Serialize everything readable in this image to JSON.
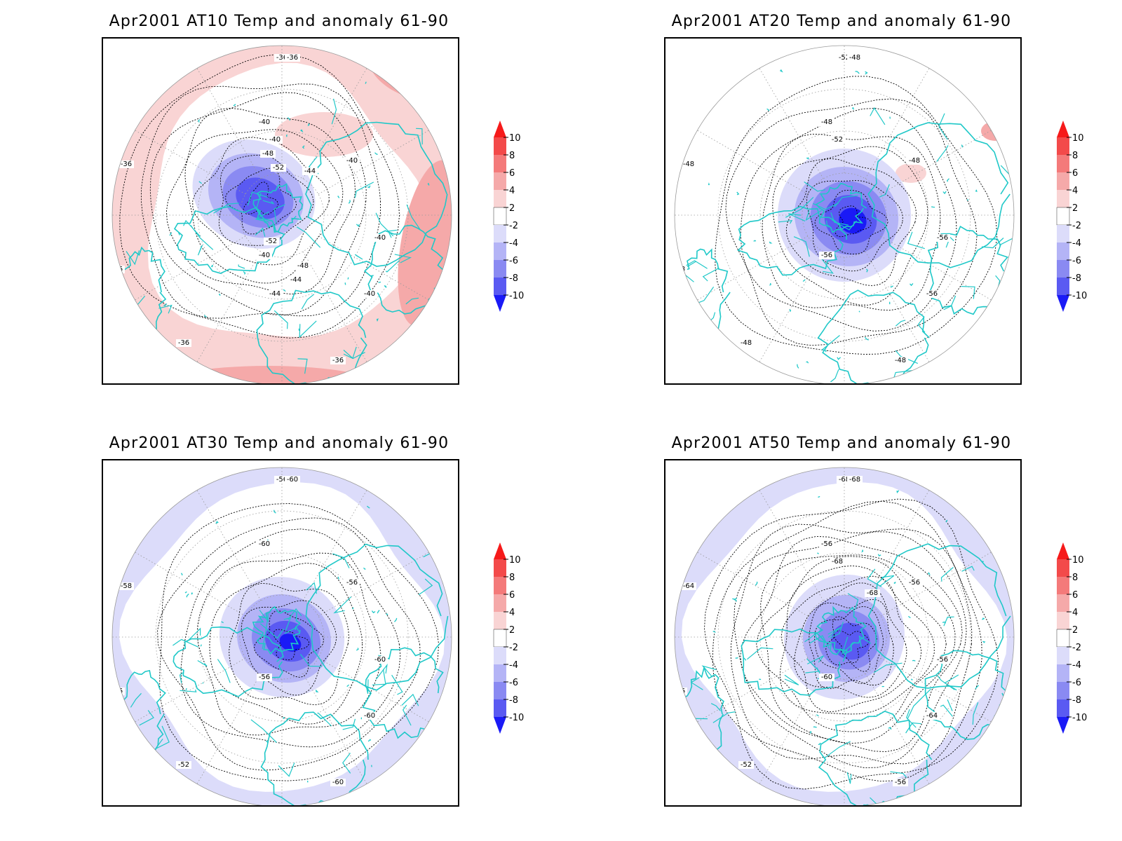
{
  "colorbar": {
    "levels": [
      "10",
      "8",
      "6",
      "4",
      "2",
      "-2",
      "-4",
      "-6",
      "-8",
      "-10"
    ],
    "colors": [
      "#f61a1a",
      "#f34a4a",
      "#f47a7a",
      "#f5a9a9",
      "#f9d4d4",
      "#ffffff",
      "#dcdcfa",
      "#b4b4f6",
      "#8a8af2",
      "#5a5af2",
      "#1a1af6"
    ]
  },
  "map_style": {
    "coast_color": "#1fc8c8",
    "contour_color": "#000000",
    "grid_color": "#9a9a9a"
  },
  "panels": [
    {
      "title": "Apr2001 AT10 Temp and anomaly 61-90",
      "ring": "warm",
      "contour_labels": [
        "-36",
        "-36",
        "-36",
        "-36",
        "-36",
        "-36",
        "-40",
        "-40",
        "-40",
        "-40",
        "-40",
        "-40",
        "-44",
        "-44",
        "-44",
        "-48",
        "-48",
        "-52",
        "-52"
      ]
    },
    {
      "title": "Apr2001 AT20 Temp and anomaly 61-90",
      "ring": "none",
      "contour_labels": [
        "-52",
        "-48",
        "-48",
        "-48",
        "-48",
        "-48",
        "-48",
        "-48",
        "-56",
        "-56",
        "-56",
        "-52"
      ]
    },
    {
      "title": "Apr2001 AT30 Temp and anomaly 61-90",
      "ring": "cool",
      "contour_labels": [
        "-56",
        "-60",
        "-58",
        "-56",
        "-52",
        "-60",
        "-60",
        "-56",
        "-60",
        "-56",
        "-60"
      ]
    },
    {
      "title": "Apr2001 AT50 Temp and anomaly 61-90",
      "ring": "cool",
      "contour_labels": [
        "-68",
        "-68",
        "-64",
        "-56",
        "-52",
        "-56",
        "-56",
        "-56",
        "-56",
        "-60",
        "-64",
        "-68",
        "-68"
      ]
    }
  ]
}
